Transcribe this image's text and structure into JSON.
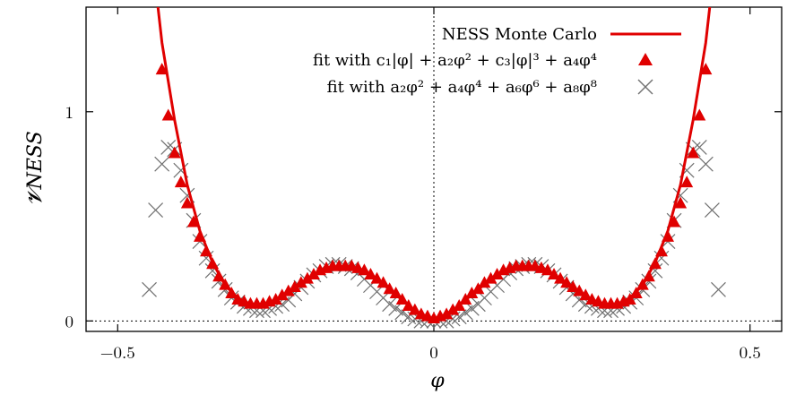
{
  "chart_data": {
    "type": "line",
    "xlabel": "φ",
    "ylabel": "𝓥NESS",
    "xlim": [
      -0.55,
      0.55
    ],
    "ylim": [
      -0.05,
      1.5
    ],
    "xticks": [
      {
        "value": -0.5,
        "label": "−0.5"
      },
      {
        "value": 0,
        "label": "0"
      },
      {
        "value": 0.5,
        "label": "0.5"
      }
    ],
    "yticks": [
      {
        "value": 0,
        "label": "0"
      },
      {
        "value": 1,
        "label": "1"
      }
    ],
    "grid": false,
    "zero_lines": true,
    "legend_position": "top-right",
    "series": [
      {
        "name": "NESS Monte Carlo",
        "style": "line",
        "color": "#e00000",
        "x": [
          -0.45,
          -0.43,
          -0.41,
          -0.39,
          -0.37,
          -0.35,
          -0.33,
          -0.31,
          -0.29,
          -0.27,
          -0.25,
          -0.23,
          -0.21,
          -0.19,
          -0.17,
          -0.15,
          -0.13,
          -0.11,
          -0.09,
          -0.07,
          -0.05,
          -0.03,
          -0.01,
          0.0,
          0.01,
          0.03,
          0.05,
          0.07,
          0.09,
          0.11,
          0.13,
          0.15,
          0.17,
          0.19,
          0.21,
          0.23,
          0.25,
          0.27,
          0.29,
          0.31,
          0.33,
          0.35,
          0.37,
          0.39,
          0.41,
          0.43,
          0.45
        ],
        "y": [
          1.87,
          1.33,
          0.96,
          0.65,
          0.43,
          0.28,
          0.17,
          0.11,
          0.08,
          0.08,
          0.1,
          0.14,
          0.18,
          0.22,
          0.25,
          0.26,
          0.26,
          0.24,
          0.2,
          0.15,
          0.1,
          0.05,
          0.02,
          0.0,
          0.02,
          0.05,
          0.1,
          0.15,
          0.2,
          0.24,
          0.26,
          0.26,
          0.25,
          0.22,
          0.18,
          0.14,
          0.1,
          0.08,
          0.08,
          0.11,
          0.17,
          0.28,
          0.43,
          0.65,
          0.96,
          1.33,
          1.87
        ]
      },
      {
        "name": "fit with c₁|φ| + a₂φ² + c₃|φ|³ + a₄φ⁴",
        "style": "triangle",
        "color": "#e00000",
        "x": [
          -0.43,
          -0.42,
          -0.41,
          -0.4,
          -0.39,
          -0.38,
          -0.37,
          -0.36,
          -0.35,
          -0.34,
          -0.33,
          -0.32,
          -0.31,
          -0.3,
          -0.29,
          -0.28,
          -0.27,
          -0.26,
          -0.25,
          -0.24,
          -0.23,
          -0.22,
          -0.21,
          -0.2,
          -0.19,
          -0.18,
          -0.17,
          -0.16,
          -0.15,
          -0.14,
          -0.13,
          -0.12,
          -0.11,
          -0.1,
          -0.09,
          -0.08,
          -0.07,
          -0.06,
          -0.05,
          -0.04,
          -0.03,
          -0.02,
          -0.01,
          0.0,
          0.01,
          0.02,
          0.03,
          0.04,
          0.05,
          0.06,
          0.07,
          0.08,
          0.09,
          0.1,
          0.11,
          0.12,
          0.13,
          0.14,
          0.15,
          0.16,
          0.17,
          0.18,
          0.19,
          0.2,
          0.21,
          0.22,
          0.23,
          0.24,
          0.25,
          0.26,
          0.27,
          0.28,
          0.29,
          0.3,
          0.31,
          0.32,
          0.33,
          0.34,
          0.35,
          0.36,
          0.37,
          0.38,
          0.39,
          0.4,
          0.41,
          0.42,
          0.43
        ],
        "y": [
          1.2,
          0.98,
          0.8,
          0.66,
          0.56,
          0.47,
          0.4,
          0.33,
          0.27,
          0.21,
          0.17,
          0.13,
          0.1,
          0.09,
          0.08,
          0.08,
          0.08,
          0.09,
          0.1,
          0.12,
          0.14,
          0.16,
          0.18,
          0.2,
          0.22,
          0.24,
          0.25,
          0.26,
          0.26,
          0.26,
          0.26,
          0.25,
          0.24,
          0.22,
          0.2,
          0.18,
          0.15,
          0.13,
          0.1,
          0.07,
          0.05,
          0.03,
          0.02,
          0.01,
          0.02,
          0.03,
          0.05,
          0.07,
          0.1,
          0.13,
          0.15,
          0.18,
          0.2,
          0.22,
          0.24,
          0.25,
          0.26,
          0.26,
          0.26,
          0.26,
          0.25,
          0.24,
          0.22,
          0.2,
          0.18,
          0.16,
          0.14,
          0.12,
          0.1,
          0.09,
          0.08,
          0.08,
          0.08,
          0.09,
          0.1,
          0.13,
          0.17,
          0.21,
          0.27,
          0.33,
          0.4,
          0.47,
          0.56,
          0.66,
          0.8,
          0.98,
          1.2
        ]
      },
      {
        "name": "fit with a₂φ² + a₄φ⁴ + a₆φ⁶ + a₈φ⁸",
        "style": "cross",
        "color": "#707070",
        "x": [
          -0.45,
          -0.44,
          -0.43,
          -0.42,
          -0.41,
          -0.4,
          -0.39,
          -0.38,
          -0.37,
          -0.36,
          -0.35,
          -0.34,
          -0.33,
          -0.32,
          -0.31,
          -0.3,
          -0.29,
          -0.28,
          -0.27,
          -0.26,
          -0.25,
          -0.24,
          -0.23,
          -0.22,
          -0.21,
          -0.2,
          -0.19,
          -0.18,
          -0.17,
          -0.16,
          -0.15,
          -0.14,
          -0.13,
          -0.12,
          -0.11,
          -0.1,
          -0.09,
          -0.08,
          -0.07,
          -0.06,
          -0.05,
          -0.04,
          -0.03,
          -0.02,
          -0.01,
          0.0,
          0.01,
          0.02,
          0.03,
          0.04,
          0.05,
          0.06,
          0.07,
          0.08,
          0.09,
          0.1,
          0.11,
          0.12,
          0.13,
          0.14,
          0.15,
          0.16,
          0.17,
          0.18,
          0.19,
          0.2,
          0.21,
          0.22,
          0.23,
          0.24,
          0.25,
          0.26,
          0.27,
          0.28,
          0.29,
          0.3,
          0.31,
          0.32,
          0.33,
          0.34,
          0.35,
          0.36,
          0.37,
          0.38,
          0.39,
          0.4,
          0.41,
          0.42,
          0.43,
          0.44,
          0.45
        ],
        "y": [
          0.15,
          0.53,
          0.75,
          0.83,
          0.82,
          0.72,
          0.6,
          0.48,
          0.38,
          0.3,
          0.24,
          0.19,
          0.15,
          0.11,
          0.09,
          0.07,
          0.06,
          0.05,
          0.05,
          0.06,
          0.07,
          0.08,
          0.1,
          0.13,
          0.16,
          0.19,
          0.22,
          0.24,
          0.26,
          0.27,
          0.27,
          0.26,
          0.25,
          0.23,
          0.2,
          0.17,
          0.14,
          0.11,
          0.08,
          0.06,
          0.04,
          0.02,
          0.01,
          0.0,
          0.0,
          0.0,
          0.0,
          0.0,
          0.01,
          0.02,
          0.04,
          0.06,
          0.08,
          0.11,
          0.14,
          0.17,
          0.2,
          0.23,
          0.25,
          0.26,
          0.27,
          0.27,
          0.26,
          0.24,
          0.22,
          0.19,
          0.16,
          0.13,
          0.1,
          0.08,
          0.07,
          0.06,
          0.05,
          0.05,
          0.06,
          0.07,
          0.09,
          0.11,
          0.15,
          0.19,
          0.24,
          0.3,
          0.38,
          0.48,
          0.6,
          0.72,
          0.82,
          0.83,
          0.75,
          0.53,
          0.15
        ]
      }
    ]
  }
}
